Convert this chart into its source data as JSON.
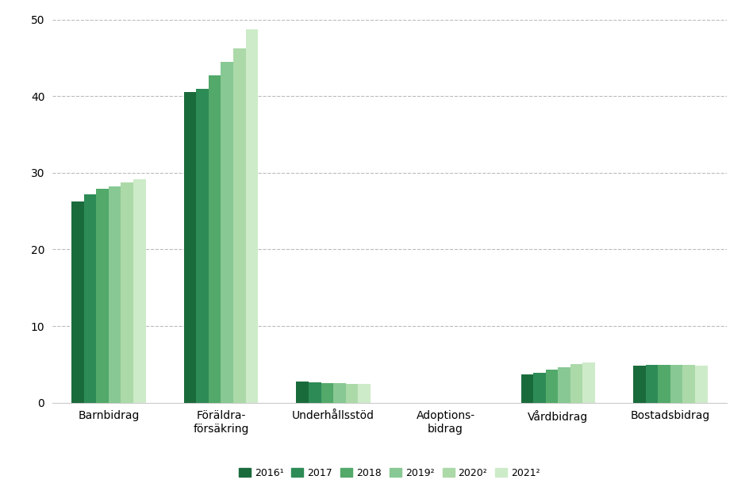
{
  "categories": [
    "Barnbidrag",
    "Föräldra-\nförsäkring",
    "Underhållsstöd",
    "Adoptions-\nbidrag",
    "Vårdbidrag",
    "Bostadsbidrag"
  ],
  "series": {
    "2016¹": [
      26.3,
      40.5,
      2.8,
      0.0,
      3.7,
      4.8
    ],
    "2017": [
      27.2,
      41.0,
      2.6,
      0.0,
      3.9,
      4.9
    ],
    "2018": [
      27.9,
      42.7,
      2.5,
      0.0,
      4.3,
      4.9
    ],
    "2019²": [
      28.2,
      44.5,
      2.5,
      0.0,
      4.6,
      4.9
    ],
    "2020²": [
      28.7,
      46.2,
      2.4,
      0.0,
      5.0,
      4.9
    ],
    "2021²": [
      29.2,
      48.7,
      2.4,
      0.0,
      5.2,
      4.8
    ]
  },
  "series_order": [
    "2016¹",
    "2017",
    "2018",
    "2019²",
    "2020²",
    "2021²"
  ],
  "colors": [
    "#1a6b3c",
    "#2d8b56",
    "#52a96a",
    "#88c894",
    "#acd9a8",
    "#cdebc8"
  ],
  "ylim": [
    0,
    50
  ],
  "yticks": [
    0,
    10,
    20,
    30,
    40,
    50
  ],
  "background_color": "#ffffff",
  "grid_color": "#bbbbbb",
  "bar_width": 0.11,
  "legend_fontsize": 9,
  "tick_fontsize": 10,
  "axis_label_fontsize": 10
}
